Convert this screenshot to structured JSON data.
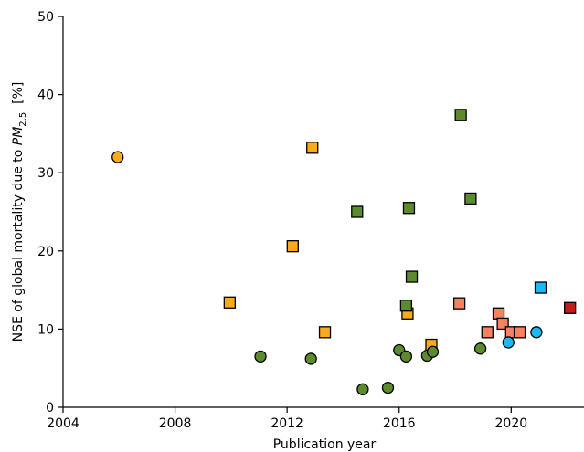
{
  "chart_data": {
    "type": "scatter",
    "xlabel": "Publication year",
    "ylabel": {
      "prefix": "NSE of global mortality due to ",
      "symbol": "PM",
      "subscript": "2.5",
      "unit": "  [%]"
    },
    "xlim": [
      2004,
      2022.6
    ],
    "ylim": [
      0,
      50
    ],
    "xticks": [
      2004,
      2008,
      2012,
      2016,
      2020
    ],
    "yticks": [
      0,
      10,
      20,
      30,
      40,
      50
    ],
    "grid": false,
    "series": [
      {
        "marker": "circle",
        "color": "#fbaa1c",
        "points": [
          [
            2005.95,
            32.0
          ]
        ]
      },
      {
        "marker": "square",
        "color": "#fbaa1c",
        "points": [
          [
            2009.95,
            13.4
          ],
          [
            2012.2,
            20.6
          ],
          [
            2012.9,
            33.2
          ],
          [
            2013.35,
            9.6
          ],
          [
            2016.3,
            12.0
          ],
          [
            2017.15,
            8.0
          ]
        ]
      },
      {
        "marker": "circle",
        "color": "#5c8a2c",
        "points": [
          [
            2011.05,
            6.5
          ],
          [
            2012.85,
            6.2
          ],
          [
            2014.7,
            2.3
          ],
          [
            2015.6,
            2.5
          ],
          [
            2016.0,
            7.3
          ],
          [
            2016.25,
            6.5
          ],
          [
            2017.0,
            6.6
          ],
          [
            2017.2,
            7.1
          ],
          [
            2018.9,
            7.5
          ]
        ]
      },
      {
        "marker": "square",
        "color": "#5c8a2c",
        "points": [
          [
            2014.5,
            25.0
          ],
          [
            2016.25,
            13.0
          ],
          [
            2016.35,
            25.5
          ],
          [
            2016.45,
            16.7
          ],
          [
            2018.2,
            37.4
          ],
          [
            2018.55,
            26.7
          ]
        ]
      },
      {
        "marker": "square",
        "color": "#fa8160",
        "points": [
          [
            2018.15,
            13.3
          ],
          [
            2019.15,
            9.6
          ],
          [
            2019.55,
            12.0
          ],
          [
            2019.7,
            10.7
          ],
          [
            2020.0,
            9.6
          ],
          [
            2020.3,
            9.6
          ]
        ]
      },
      {
        "marker": "circle",
        "color": "#1cb8f5",
        "points": [
          [
            2019.9,
            8.3
          ],
          [
            2020.9,
            9.6
          ]
        ]
      },
      {
        "marker": "square",
        "color": "#1cb8f5",
        "points": [
          [
            2021.05,
            15.3
          ]
        ]
      },
      {
        "marker": "square",
        "color": "#c41b1b",
        "points": [
          [
            2022.1,
            12.7
          ]
        ]
      }
    ]
  }
}
